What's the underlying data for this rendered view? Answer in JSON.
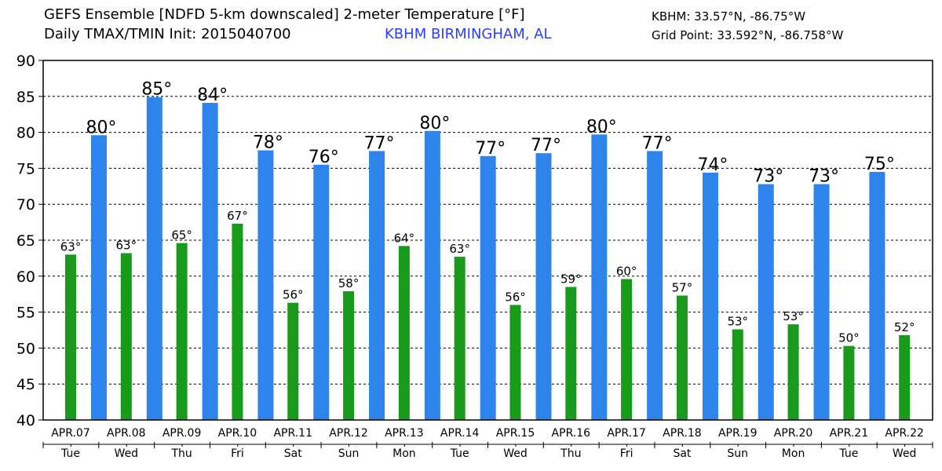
{
  "header": {
    "title_line1": "GEFS Ensemble [NDFD 5-km downscaled] 2-meter Temperature [°F]",
    "title_line2": "Daily TMAX/TMIN Init: 2015040700",
    "station": "KBHM BIRMINGHAM, AL",
    "station_coords": "KBHM: 33.57°N, -86.75°W",
    "grid_point": "Grid Point: 33.592°N, -86.758°W"
  },
  "chart_data": {
    "type": "bar",
    "title": "GEFS Ensemble [NDFD 5-km downscaled] 2-meter Temperature [°F]",
    "ylim": [
      40,
      90
    ],
    "yticks": [
      40,
      45,
      50,
      55,
      60,
      65,
      70,
      75,
      80,
      85,
      90
    ],
    "grid": "horizontal dashed",
    "categories": [
      "APR.07",
      "APR.08",
      "APR.09",
      "APR.10",
      "APR.11",
      "APR.12",
      "APR.13",
      "APR.14",
      "APR.15",
      "APR.16",
      "APR.17",
      "APR.18",
      "APR.19",
      "APR.20",
      "APR.21",
      "APR.22"
    ],
    "weekdays": [
      "Tue",
      "Wed",
      "Thu",
      "Fri",
      "Sat",
      "Sun",
      "Mon",
      "Tue",
      "Wed",
      "Thu",
      "Fri",
      "Sat",
      "Sun",
      "Mon",
      "Tue",
      "Wed"
    ],
    "series": [
      {
        "name": "TMIN",
        "color": "#1a9a1a",
        "values": [
          63.0,
          63.2,
          64.6,
          67.3,
          56.3,
          57.9,
          64.2,
          62.7,
          56.0,
          58.5,
          59.6,
          57.3,
          52.6,
          53.3,
          50.3,
          51.8
        ],
        "labels": [
          "63°",
          "63°",
          "65°",
          "67°",
          "56°",
          "58°",
          "64°",
          "63°",
          "56°",
          "59°",
          "60°",
          "57°",
          "53°",
          "53°",
          "50°",
          "52°"
        ]
      },
      {
        "name": "TMAX",
        "color": "#2f84ec",
        "values": [
          79.6,
          84.9,
          84.1,
          77.5,
          75.5,
          77.4,
          80.2,
          76.7,
          77.1,
          79.7,
          77.4,
          74.4,
          72.8,
          72.8,
          74.5,
          null
        ],
        "labels": [
          "80°",
          "85°",
          "84°",
          "78°",
          "76°",
          "77°",
          "80°",
          "77°",
          "77°",
          "80°",
          "77°",
          "74°",
          "73°",
          "73°",
          "75°",
          ""
        ]
      }
    ]
  }
}
